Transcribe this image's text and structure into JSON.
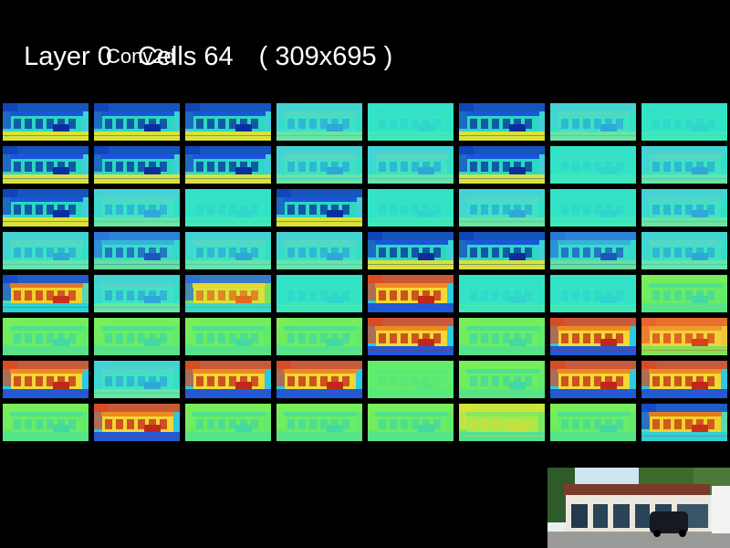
{
  "header": {
    "layer": "Layer 0",
    "cells": "Cells 64",
    "size": "( 309x695 )",
    "layer_type": "Conv2d"
  },
  "grid": {
    "rows": 8,
    "cols": 8,
    "cell_styles": [
      "strong-blue",
      "strong-blue",
      "strong-blue",
      "soft-cyan",
      "flat-cyan",
      "strong-blue",
      "soft-cyan",
      "flat-cyan",
      "strong-blue",
      "strong-blue",
      "strong-blue",
      "soft-cyan",
      "soft-cyan",
      "strong-blue",
      "flat-cyan",
      "soft-cyan",
      "strong-blue",
      "soft-cyan",
      "flat-cyan",
      "strong-blue",
      "flat-cyan",
      "soft-cyan",
      "flat-cyan",
      "soft-cyan",
      "soft-cyan",
      "soft-blue",
      "soft-cyan",
      "soft-cyan",
      "strong-blue",
      "strong-blue",
      "soft-blue",
      "soft-cyan",
      "strong-orange",
      "soft-cyan",
      "strong-yellow",
      "flat-cyan",
      "strong-red",
      "flat-cyan",
      "flat-cyan",
      "soft-green",
      "soft-green",
      "soft-green",
      "soft-green",
      "soft-green",
      "strong-red",
      "soft-green",
      "strong-red",
      "soft-red",
      "strong-red",
      "soft-cyan",
      "strong-red",
      "strong-red",
      "flat-green",
      "soft-green",
      "strong-red",
      "strong-red",
      "soft-green",
      "strong-red",
      "soft-green",
      "soft-green",
      "soft-green",
      "soft-yellow",
      "soft-green",
      "strong-orange"
    ]
  },
  "colors": {
    "background": "#000000",
    "cyan": "#2de8c8",
    "green": "#7ef050",
    "blue": "#1f5fd8",
    "yellow": "#e8e020",
    "red": "#e04020"
  },
  "thumbnail": {
    "icon": "source-image-thumbnail"
  }
}
